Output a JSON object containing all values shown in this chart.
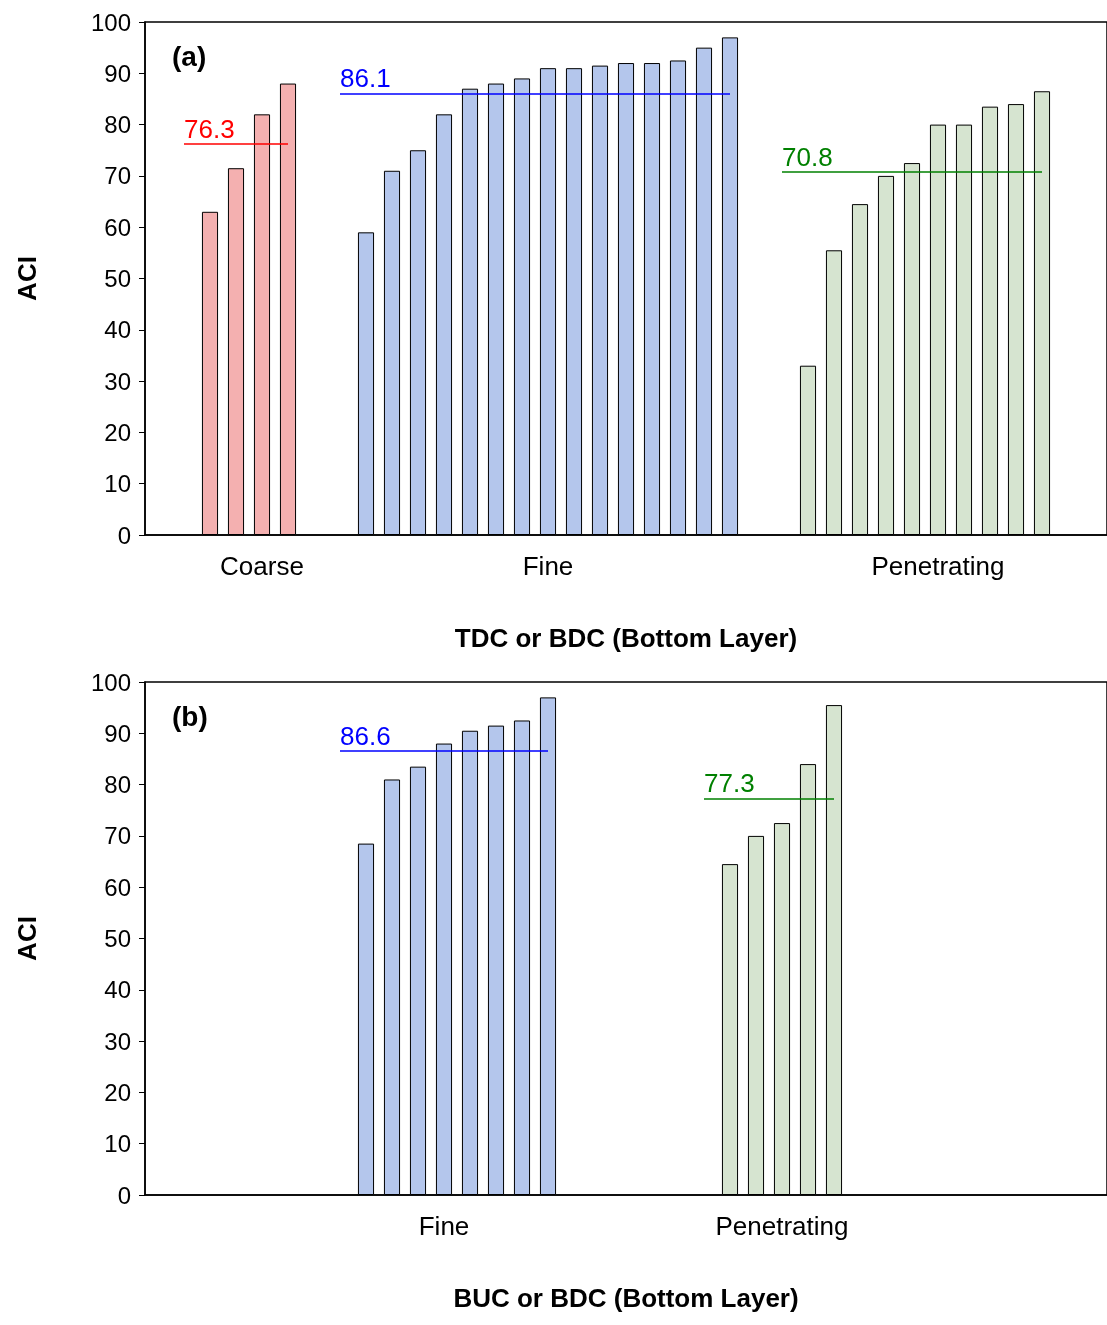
{
  "chart_data": [
    {
      "type": "bar",
      "annotations": [
        "(a)"
      ],
      "xlabel": "TDC or BDC (Bottom Layer)",
      "ylabel": "ACI",
      "categories": [
        null,
        null,
        null,
        null,
        "Coarse",
        null,
        null,
        null,
        null,
        null,
        null,
        null,
        null,
        null,
        null,
        "Fine",
        null,
        null,
        null,
        null,
        null,
        null,
        null,
        null,
        null,
        null,
        null,
        null,
        null,
        null,
        "Penetrating",
        null,
        null,
        null,
        null,
        null,
        null
      ],
      "series": [
        {
          "color": "#f4b0b0",
          "values": [
            null,
            null,
            63,
            71.5,
            82,
            88,
            null,
            null,
            null,
            null,
            null,
            null,
            null,
            null,
            null,
            null,
            null,
            null,
            null,
            null,
            null,
            null,
            null,
            null,
            null,
            null,
            null,
            null,
            null,
            null,
            null,
            null,
            null,
            null,
            null,
            null,
            null
          ]
        },
        {
          "color": "#b4c6ec",
          "values": [
            null,
            null,
            null,
            null,
            null,
            null,
            null,
            null,
            59,
            71,
            75,
            82,
            87,
            88,
            89,
            91,
            91,
            91.5,
            92,
            92,
            92.5,
            95,
            97,
            null,
            null,
            null,
            null,
            null,
            null,
            null,
            null,
            null,
            null,
            null,
            null,
            null,
            null
          ]
        },
        {
          "color": "#d6e4d0",
          "values": [
            null,
            null,
            null,
            null,
            null,
            null,
            null,
            null,
            null,
            null,
            null,
            null,
            null,
            null,
            null,
            null,
            null,
            null,
            null,
            null,
            null,
            null,
            null,
            null,
            null,
            33,
            55.5,
            64.5,
            70,
            72.5,
            80,
            80,
            83.5,
            84,
            86.5,
            null,
            null
          ]
        }
      ],
      "ylim": [
        0,
        100
      ],
      "yticks": [
        0,
        10,
        20,
        30,
        40,
        50,
        60,
        70,
        80,
        90,
        100
      ],
      "grid": false,
      "ref_lines": [
        {
          "axis": "y",
          "value": 76.3,
          "label": "76.3",
          "color": "#ff0000"
        },
        {
          "axis": "y",
          "value": 86.1,
          "label": "86.1",
          "color": "#0000ff"
        },
        {
          "axis": "y",
          "value": 70.8,
          "label": "70.8",
          "color": "#008000"
        }
      ]
    },
    {
      "type": "bar",
      "annotations": [
        "(b)"
      ],
      "xlabel": "BUC or BDC (Bottom Layer)",
      "ylabel": "ACI",
      "categories": [
        null,
        null,
        null,
        null,
        null,
        null,
        null,
        null,
        null,
        null,
        null,
        "Fine",
        null,
        null,
        null,
        null,
        null,
        null,
        null,
        null,
        null,
        null,
        null,
        null,
        "Penetrating",
        null,
        null,
        null,
        null,
        null,
        null,
        null,
        null,
        null,
        null,
        null,
        null
      ],
      "series": [
        {
          "color": "#b4c6ec",
          "values": [
            null,
            null,
            null,
            null,
            null,
            null,
            null,
            null,
            68.5,
            81,
            83.5,
            88,
            90.5,
            91.5,
            92.5,
            97,
            null,
            null,
            null,
            null,
            null,
            null,
            null,
            null,
            null,
            null,
            null,
            null,
            null,
            null,
            null,
            null,
            null,
            null,
            null,
            null,
            null
          ]
        },
        {
          "color": "#d6e4d0",
          "values": [
            null,
            null,
            null,
            null,
            null,
            null,
            null,
            null,
            null,
            null,
            null,
            null,
            null,
            null,
            null,
            null,
            null,
            null,
            null,
            null,
            null,
            null,
            64.5,
            70,
            72.5,
            84,
            95.5,
            null,
            null,
            null,
            null,
            null,
            null,
            null,
            null,
            null,
            null
          ]
        }
      ],
      "ylim": [
        0,
        100
      ],
      "yticks": [
        0,
        10,
        20,
        30,
        40,
        50,
        60,
        70,
        80,
        90,
        100
      ],
      "grid": false,
      "ref_lines": [
        {
          "axis": "y",
          "value": 86.6,
          "label": "86.6",
          "color": "#0000ff"
        },
        {
          "axis": "y",
          "value": 77.3,
          "label": "77.3",
          "color": "#008000"
        }
      ]
    }
  ]
}
